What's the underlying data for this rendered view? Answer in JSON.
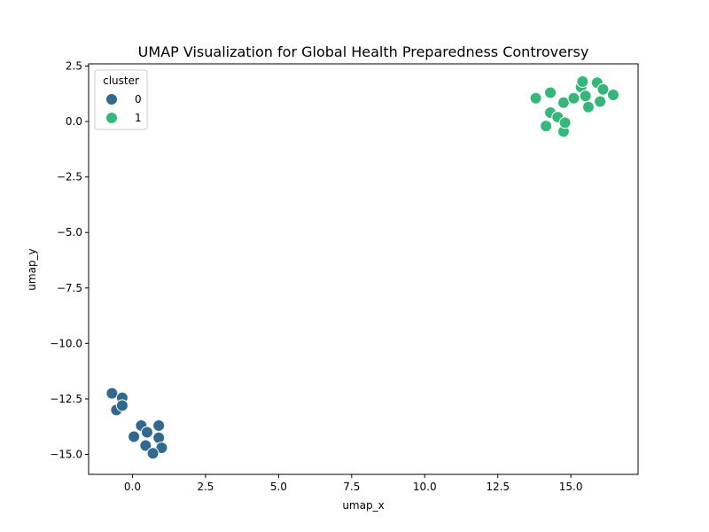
{
  "chart_data": {
    "type": "scatter",
    "title": "UMAP Visualization for Global Health Preparedness Controversy",
    "xlabel": "umap_x",
    "ylabel": "umap_y",
    "xlim": [
      -1.5,
      17.3
    ],
    "ylim": [
      -15.9,
      2.6
    ],
    "xticks": [
      0.0,
      2.5,
      5.0,
      7.5,
      10.0,
      12.5,
      15.0
    ],
    "xtick_labels": [
      "0.0",
      "2.5",
      "5.0",
      "7.5",
      "10.0",
      "12.5",
      "15.0"
    ],
    "yticks": [
      2.5,
      0.0,
      -2.5,
      -5.0,
      -7.5,
      -10.0,
      -12.5,
      -15.0
    ],
    "ytick_labels": [
      "2.5",
      "0.0",
      "−2.5",
      "−5.0",
      "−7.5",
      "−10.0",
      "−12.5",
      "−15.0"
    ],
    "grid": false,
    "legend": {
      "title": "cluster",
      "position": "top-left"
    },
    "series": [
      {
        "name": "0",
        "color": "#31688e",
        "points": [
          [
            -0.7,
            -12.25
          ],
          [
            -0.35,
            -12.45
          ],
          [
            -0.55,
            -13.0
          ],
          [
            -0.35,
            -12.8
          ],
          [
            0.3,
            -13.7
          ],
          [
            0.9,
            -13.7
          ],
          [
            0.5,
            -14.0
          ],
          [
            0.05,
            -14.2
          ],
          [
            0.9,
            -14.25
          ],
          [
            0.45,
            -14.6
          ],
          [
            1.0,
            -14.7
          ],
          [
            0.7,
            -14.95
          ]
        ]
      },
      {
        "name": "1",
        "color": "#35b779",
        "points": [
          [
            13.8,
            1.05
          ],
          [
            14.3,
            1.3
          ],
          [
            14.75,
            0.85
          ],
          [
            14.3,
            0.4
          ],
          [
            14.55,
            0.2
          ],
          [
            14.15,
            -0.2
          ],
          [
            14.75,
            -0.45
          ],
          [
            14.8,
            -0.05
          ],
          [
            15.1,
            1.05
          ],
          [
            15.35,
            1.55
          ],
          [
            15.4,
            1.8
          ],
          [
            15.5,
            1.15
          ],
          [
            15.6,
            0.65
          ],
          [
            15.9,
            1.75
          ],
          [
            16.1,
            1.45
          ],
          [
            16.0,
            0.9
          ],
          [
            16.45,
            1.2
          ]
        ]
      }
    ]
  }
}
